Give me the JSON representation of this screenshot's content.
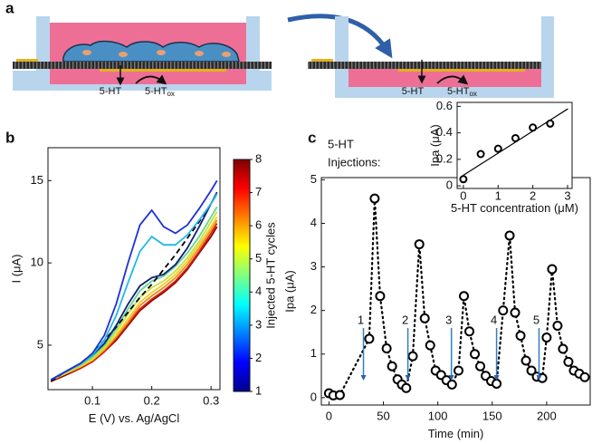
{
  "panel_labels": [
    "a",
    "b",
    "c"
  ],
  "diagram": {
    "panels": [
      {
        "species": [
          "5-HT",
          "5-HT"
        ],
        "subscript": "ox"
      },
      {
        "species": [
          "5-HT",
          "5-HT"
        ],
        "subscript": "ox"
      }
    ]
  },
  "chart_data": [
    {
      "type": "line",
      "xlabel": "E (V) vs. Ag/AgCl",
      "ylabel": "I (μA)",
      "xlim": [
        0.025,
        0.315
      ],
      "ylim": [
        2.3,
        17
      ],
      "xticks": [
        0.1,
        0.2,
        0.3
      ],
      "yticks": [
        5,
        10,
        15
      ],
      "x": [
        0.03,
        0.05,
        0.08,
        0.1,
        0.12,
        0.14,
        0.16,
        0.18,
        0.2,
        0.22,
        0.24,
        0.26,
        0.28,
        0.3,
        0.31
      ],
      "series": [
        {
          "color": "#8c0c00",
          "values": [
            2.8,
            3.1,
            3.6,
            4.0,
            4.6,
            5.3,
            6.2,
            7.1,
            7.7,
            8.2,
            8.8,
            9.6,
            10.6,
            11.6,
            12.2
          ]
        },
        {
          "color": "#d82010",
          "values": [
            2.8,
            3.2,
            3.6,
            4.0,
            4.6,
            5.4,
            6.3,
            7.2,
            7.8,
            8.3,
            8.9,
            9.7,
            10.7,
            11.8,
            12.4
          ]
        },
        {
          "color": "#f08a20",
          "values": [
            2.9,
            3.2,
            3.7,
            4.1,
            4.7,
            5.5,
            6.4,
            7.4,
            8.0,
            8.5,
            9.1,
            9.9,
            10.9,
            12.0,
            12.6
          ]
        },
        {
          "color": "#f0d020",
          "values": [
            2.9,
            3.2,
            3.7,
            4.1,
            4.8,
            5.6,
            6.6,
            7.6,
            8.2,
            8.7,
            9.3,
            10.1,
            11.1,
            12.2,
            12.8
          ]
        },
        {
          "color": "#c8e040",
          "values": [
            2.9,
            3.2,
            3.8,
            4.2,
            4.9,
            5.8,
            6.9,
            7.9,
            8.5,
            8.9,
            9.5,
            10.3,
            11.3,
            12.5,
            13.1
          ]
        },
        {
          "color": "#60d890",
          "values": [
            2.9,
            3.3,
            3.8,
            4.3,
            5.0,
            6.0,
            7.2,
            8.3,
            8.9,
            9.2,
            9.8,
            10.6,
            11.6,
            12.8,
            13.4
          ]
        },
        {
          "color": "#000000",
          "line_style": "dashed",
          "values": [
            2.8,
            3.3,
            3.9,
            4.5,
            5.3,
            6.1,
            7.0,
            7.9,
            8.7,
            9.6,
            10.5,
            11.5,
            12.5,
            13.6,
            14.2
          ]
        },
        {
          "color": "#141e78",
          "values": [
            2.9,
            3.3,
            3.9,
            4.4,
            5.1,
            6.2,
            7.5,
            8.6,
            9.1,
            9.3,
            9.9,
            10.9,
            12.2,
            13.6,
            14.3
          ]
        },
        {
          "color": "#20b8e8",
          "values": [
            2.9,
            3.3,
            3.9,
            4.4,
            5.3,
            6.8,
            8.8,
            10.7,
            11.6,
            11.1,
            11.1,
            11.7,
            12.6,
            13.6,
            14.2
          ]
        },
        {
          "color": "#2030d8",
          "values": [
            2.9,
            3.3,
            3.9,
            4.5,
            5.6,
            7.5,
            10.0,
            12.3,
            13.2,
            12.2,
            11.8,
            12.3,
            13.3,
            14.4,
            15.0
          ]
        }
      ],
      "colorbar": {
        "label": "Injected 5-HT cycles",
        "lim": [
          1,
          8
        ],
        "ticks": [
          1,
          2,
          3,
          4,
          5,
          6,
          7,
          8
        ],
        "colors": [
          "#00008f",
          "#0000ff",
          "#0080ff",
          "#00ffff",
          "#80ff80",
          "#ffff00",
          "#ff8000",
          "#ff0000",
          "#800000"
        ]
      }
    },
    {
      "type": "scatter",
      "xlabel": "Time (min)",
      "ylabel": "Ipa (μA)",
      "xlim": [
        -7,
        240
      ],
      "ylim": [
        -0.17,
        5.05
      ],
      "xticks": [
        0,
        50,
        100,
        150,
        200
      ],
      "yticks": [
        0,
        1,
        2,
        3,
        4,
        5
      ],
      "series": [
        {
          "color": "#000000",
          "marker": "circle",
          "line_style": "dotted",
          "x": [
            0,
            4,
            10,
            37,
            42,
            47,
            53,
            58,
            63,
            67,
            71,
            77,
            83,
            88,
            93,
            98,
            103,
            108,
            113,
            119,
            124,
            129,
            134,
            139,
            144,
            149,
            154,
            160,
            166,
            171,
            176,
            181,
            186,
            191,
            196,
            200,
            205,
            210,
            215,
            220,
            225,
            230,
            235
          ],
          "values": [
            0.1,
            0.05,
            0.06,
            1.35,
            4.57,
            2.33,
            1.13,
            0.72,
            0.42,
            0.3,
            0.22,
            0.95,
            3.52,
            1.82,
            1.2,
            0.62,
            0.52,
            0.4,
            0.3,
            0.62,
            2.33,
            1.52,
            1.0,
            0.72,
            0.5,
            0.38,
            0.32,
            2.0,
            3.72,
            1.95,
            1.42,
            0.85,
            0.62,
            0.48,
            0.45,
            1.38,
            2.95,
            1.65,
            1.12,
            0.82,
            0.62,
            0.55,
            0.47
          ]
        }
      ],
      "annotation": {
        "lines": [
          "5-HT",
          "Injections:"
        ],
        "color": "#2f7fc1"
      },
      "injections": [
        {
          "label": "1",
          "x": 31.7
        },
        {
          "label": "2",
          "x": 72.5
        },
        {
          "label": "3",
          "x": 112.5
        },
        {
          "label": "4",
          "x": 154
        },
        {
          "label": "5",
          "x": 193
        }
      ]
    },
    {
      "type": "scatter",
      "xlabel": "5-HT concentration (μM)",
      "ylabel": "Ipa (μA)",
      "xlim": [
        -0.18,
        3.13
      ],
      "ylim": [
        -0.02,
        0.63
      ],
      "xticks": [
        0,
        1,
        2,
        3
      ],
      "yticks": [
        0,
        0.2,
        0.4,
        0.6
      ],
      "series": [
        {
          "color": "#000000",
          "line_style": "solid",
          "x": [
            0,
            3
          ],
          "values": [
            0.08,
            0.58
          ]
        },
        {
          "color": "#000000",
          "marker": "circle",
          "x": [
            0,
            0.5,
            1,
            1.5,
            2,
            2.5
          ],
          "values": [
            0.05,
            0.24,
            0.28,
            0.36,
            0.44,
            0.47
          ]
        }
      ]
    }
  ]
}
